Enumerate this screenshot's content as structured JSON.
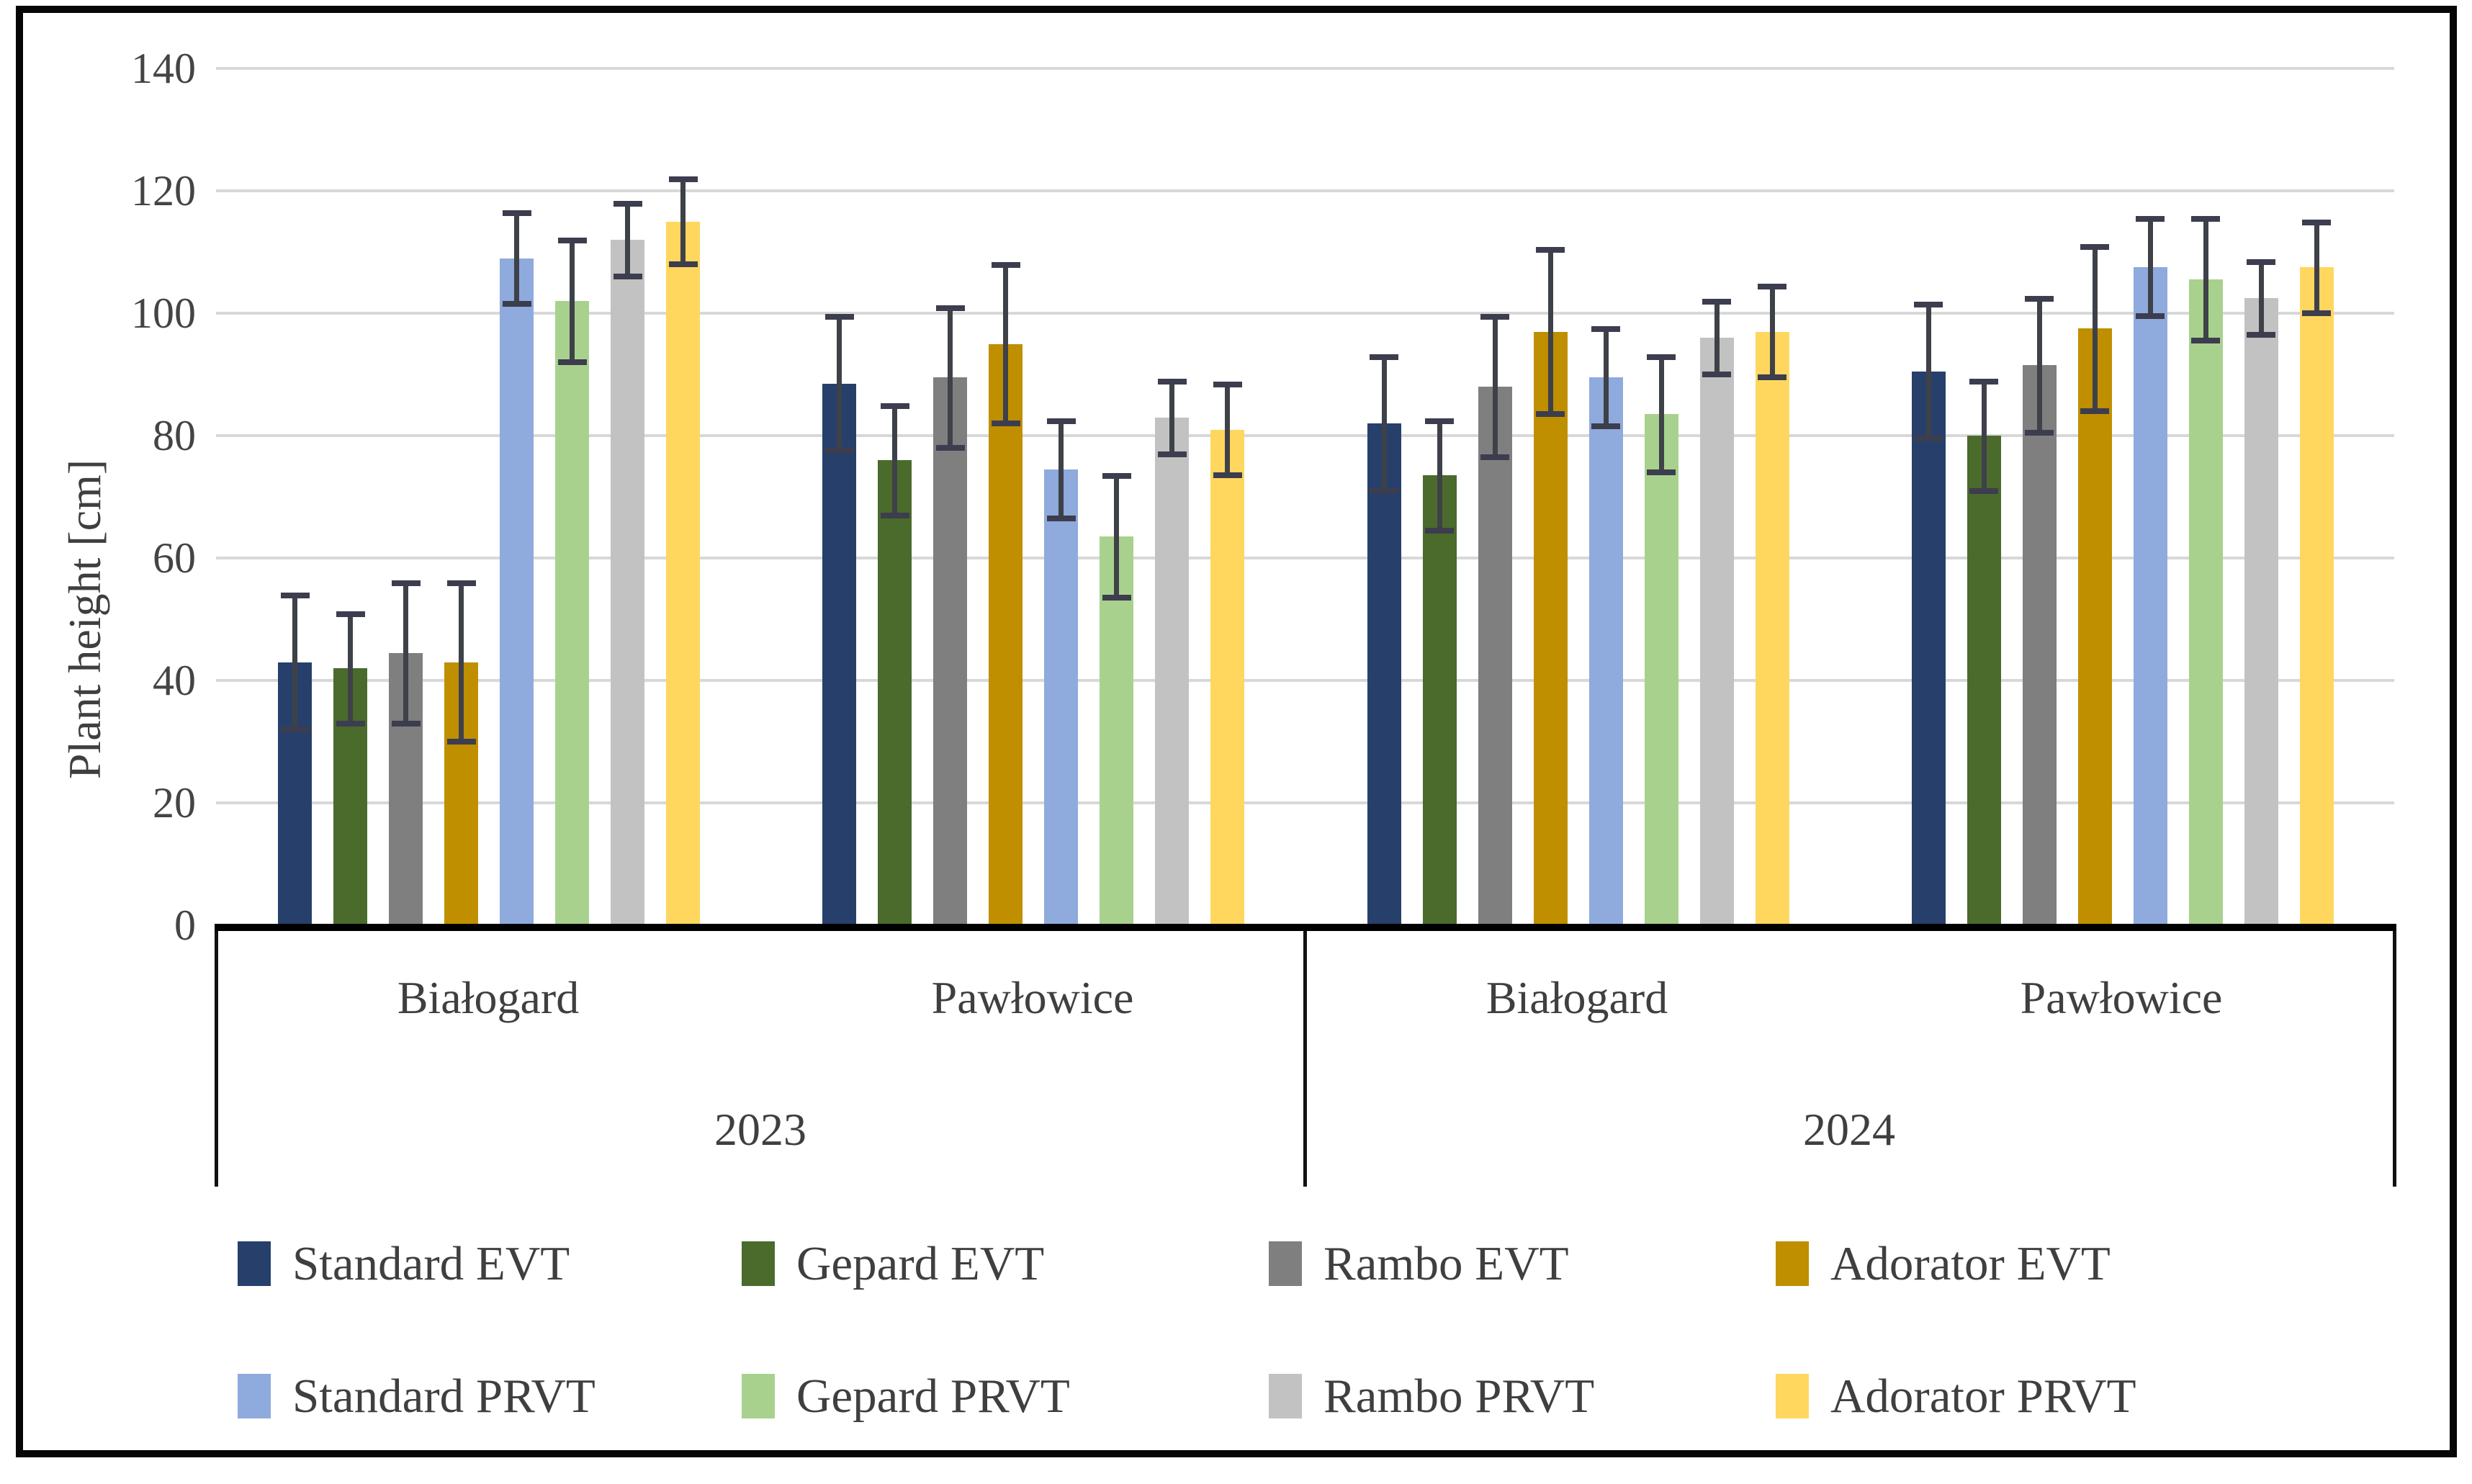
{
  "chart_data": {
    "type": "bar",
    "title": "",
    "ylabel": "Plant height [cm]",
    "ylim": [
      0,
      140
    ],
    "ytick_step": 20,
    "yticks": [
      0,
      20,
      40,
      60,
      80,
      100,
      120,
      140
    ],
    "grid": "horizontal",
    "legend_position": "bottom, two rows of four",
    "error_bars": "plus-minus, capped",
    "series": [
      {
        "name": "Standard EVT",
        "color": "#27406B"
      },
      {
        "name": "Gepard EVT",
        "color": "#4A6B2C"
      },
      {
        "name": "Rambo EVT",
        "color": "#7F7F7F"
      },
      {
        "name": "Adorator EVT",
        "color": "#BF8F00"
      },
      {
        "name": "Standard PRVT",
        "color": "#8FAADC"
      },
      {
        "name": "Gepard PRVT",
        "color": "#A9D18E"
      },
      {
        "name": "Rambo PRVT",
        "color": "#C2C2C2"
      },
      {
        "name": "Adorator PRVT",
        "color": "#FFD75E"
      }
    ],
    "groups": [
      {
        "year": "2023",
        "location": "Białogard",
        "values": [
          43,
          42,
          44.5,
          43,
          109,
          102,
          112,
          115
        ],
        "errors": [
          11,
          9,
          11.5,
          13,
          7.5,
          10,
          6,
          7
        ]
      },
      {
        "year": "2023",
        "location": "Pawłowice",
        "values": [
          88.5,
          76,
          89.5,
          95,
          74.5,
          63.5,
          83,
          81
        ],
        "errors": [
          11,
          9,
          11.5,
          13,
          8,
          10,
          6,
          7.5
        ]
      },
      {
        "year": "2024",
        "location": "Białogard",
        "values": [
          82,
          73.5,
          88,
          97,
          89.5,
          83.5,
          96,
          97
        ],
        "errors": [
          11,
          9,
          11.5,
          13.5,
          8,
          9.5,
          6,
          7.5
        ]
      },
      {
        "year": "2024",
        "location": "Pawłowice",
        "values": [
          90.5,
          80,
          91.5,
          97.5,
          107.5,
          105.5,
          102.5,
          107.5
        ],
        "errors": [
          11,
          9,
          11,
          13.5,
          8,
          10,
          6,
          7.5
        ]
      }
    ]
  },
  "x_axis": {
    "locations": [
      "Białogard",
      "Pawłowice",
      "Białogard",
      "Pawłowice"
    ],
    "years": [
      "2023",
      "2024"
    ]
  },
  "legend": {
    "labels": [
      "Standard EVT",
      "Gepard EVT",
      "Rambo EVT",
      "Adorator EVT",
      "Standard PRVT",
      "Gepard PRVT",
      "Rambo PRVT",
      "Adorator PRVT"
    ]
  }
}
